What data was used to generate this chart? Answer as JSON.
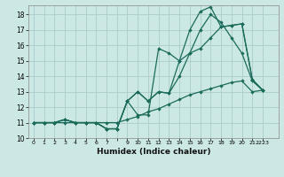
{
  "xlabel": "Humidex (Indice chaleur)",
  "bg_color": "#cce8e4",
  "grid_color": "#aaccca",
  "line_color": "#1a6b5a",
  "xlim": [
    -0.5,
    23.5
  ],
  "ylim": [
    10.0,
    18.6
  ],
  "yticks": [
    10,
    11,
    12,
    13,
    14,
    15,
    16,
    17,
    18
  ],
  "xtick_labels": [
    "0",
    "1",
    "2",
    "3",
    "4",
    "5",
    "6",
    "7",
    "",
    "9",
    "10",
    "11",
    "12",
    "13",
    "14",
    "15",
    "16",
    "17",
    "18",
    "19",
    "20",
    "21",
    "2223"
  ],
  "series": [
    [
      11,
      11,
      11,
      11.2,
      11,
      11.0,
      11.0,
      10.6,
      10.6,
      12.4,
      13.0,
      12.4,
      13.0,
      12.9,
      15.0,
      15.5,
      17.0,
      18.0,
      17.5,
      16.5,
      15.5,
      13.7,
      13.1
    ],
    [
      11,
      11,
      11,
      11.2,
      11,
      11.0,
      11.0,
      10.6,
      10.6,
      12.4,
      11.5,
      11.5,
      15.8,
      15.5,
      15.0,
      17.0,
      18.2,
      18.5,
      17.2,
      17.3,
      17.4,
      13.8,
      13.1
    ],
    [
      11,
      11,
      11,
      11.2,
      11,
      11.0,
      11.0,
      10.6,
      10.6,
      12.4,
      13.0,
      12.4,
      13.0,
      12.9,
      14.0,
      15.5,
      15.8,
      16.5,
      17.2,
      17.3,
      17.4,
      13.8,
      13.1
    ],
    [
      11,
      11,
      11,
      11.0,
      11,
      11.0,
      11.0,
      11.0,
      11.0,
      11.2,
      11.4,
      11.7,
      11.9,
      12.2,
      12.5,
      12.8,
      13.0,
      13.2,
      13.4,
      13.6,
      13.7,
      13.0,
      13.1
    ]
  ]
}
